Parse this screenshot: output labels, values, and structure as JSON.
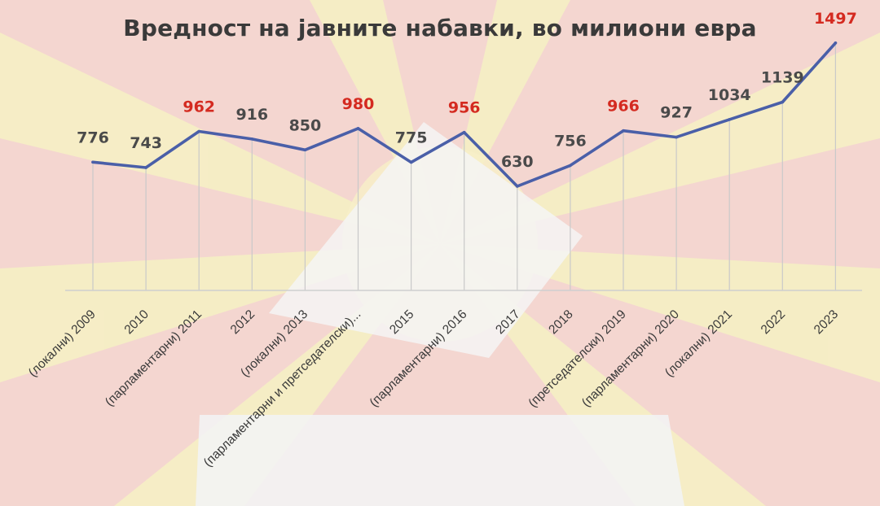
{
  "chart_data": {
    "type": "line",
    "title": "Вредност на јавните набавки, во милиони евра",
    "xlabel": "",
    "ylabel": "",
    "categories": [
      "(локални) 2009",
      "2010",
      "(парламентарни) 2011",
      "2012",
      "(локални) 2013",
      "(парламентарни и претседателски)...",
      "2015",
      "(парламентарни) 2016",
      "2017",
      "2018",
      "(претседателски) 2019",
      "(парламентарни) 2020",
      "(локални) 2021",
      "2022",
      "2023"
    ],
    "series": [
      {
        "values": [
          776,
          743,
          962,
          916,
          850,
          980,
          775,
          956,
          630,
          756,
          966,
          927,
          1034,
          1139,
          1497
        ]
      }
    ],
    "value_labels": [
      "776",
      "743",
      "962",
      "916",
      "850",
      "980",
      "775",
      "956",
      "630",
      "756",
      "966",
      "927",
      "1034",
      "1139",
      "1497"
    ],
    "highlighted": [
      false,
      false,
      true,
      false,
      false,
      true,
      false,
      true,
      false,
      false,
      true,
      false,
      false,
      false,
      true
    ],
    "ylim": [
      0,
      1560
    ],
    "grid": "vertical",
    "colors": {
      "line": "#4a5fa8",
      "label": "#4a4a4a",
      "highlight": "#d42a20"
    }
  }
}
